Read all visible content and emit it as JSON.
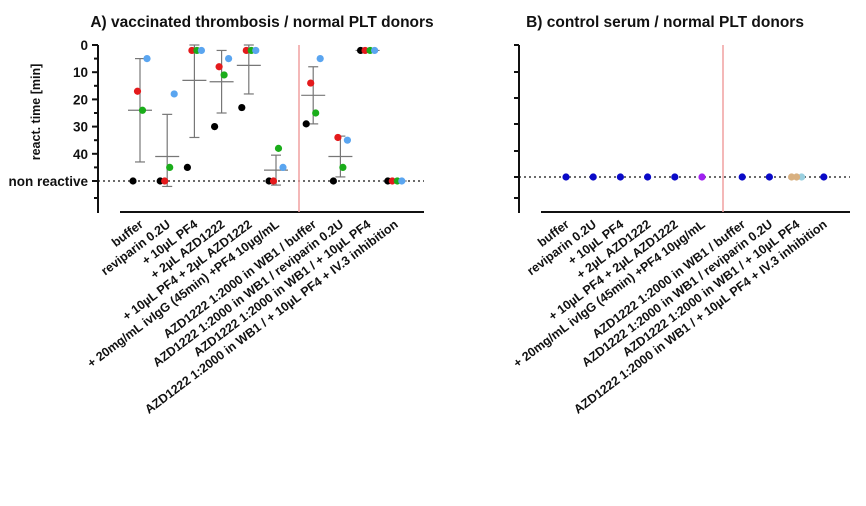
{
  "colors": {
    "donor1": "#000000",
    "donor2": "#e41a1c",
    "donor3": "#1aad1a",
    "donor4": "#5aa5f0",
    "control_marker": "#0a0ac8",
    "control_highlight": "#a020f0",
    "control_tan": "#d8b080",
    "control_light": "#9ad0e0",
    "separator": "#f0a0a0"
  },
  "chart_data": [
    {
      "type": "scatter",
      "title": "A) vaccinated thrombosis / normal PLT donors",
      "ylabel": "react. time [min]",
      "y_axis": "inverted",
      "ylim": [
        0,
        50
      ],
      "y_ticks": [
        "0",
        "10",
        "20",
        "30",
        "40",
        "non reactive"
      ],
      "reference_line": "non reactive (dotted)",
      "categories": [
        "buffer",
        "reviparin 0.2U",
        "+ 10µL PF4",
        "+ 2µL AZD1222",
        "+ 10µL PF4 + 2µL AZD1222",
        "+ 20mg/mL ivIgG (45min) +PF4 10µg/mL",
        "AZD1222 1:2000 in WB1 / buffer",
        "AZD1222 1:2000 in WB1 / reviparin 0.2U",
        "AZD1222 1:2000 in WB1 / + 10µL PF4",
        "AZD1222 1:2000 in WB1 / + 10µL PF4 + IV.3 inhibition"
      ],
      "series": [
        {
          "color": "#000000",
          "values": [
            50,
            50,
            45,
            30,
            23,
            50,
            29,
            50,
            2,
            50
          ]
        },
        {
          "color": "#e41a1c",
          "values": [
            17,
            50,
            2,
            8,
            2,
            50,
            14,
            34,
            2,
            50
          ]
        },
        {
          "color": "#1aad1a",
          "values": [
            24,
            45,
            2,
            11,
            2,
            38,
            25,
            45,
            2,
            50
          ]
        },
        {
          "color": "#5aa5f0",
          "values": [
            5,
            18,
            2,
            5,
            2,
            45,
            5,
            35,
            2,
            50
          ]
        }
      ],
      "mean": [
        24,
        41,
        13,
        13.5,
        7.5,
        46,
        18.5,
        41,
        2,
        50
      ],
      "sd": [
        19,
        15.5,
        21,
        11.5,
        10.5,
        5.5,
        10.5,
        7.5,
        0,
        0
      ]
    },
    {
      "type": "scatter",
      "title": "B) control serum / normal PLT donors",
      "ylabel": "",
      "y_axis": "inverted",
      "y_ticks": [],
      "reference_line": "non reactive (dotted)",
      "categories": [
        "buffer",
        "reviparin 0.2U",
        "+ 10µL PF4",
        "+ 2µL AZD1222",
        "+ 10µL PF4 + 2µL AZD1222",
        "+ 20mg/mL ivIgG (45min) +PF4 10µg/mL",
        "AZD1222 1:2000 in WB1 / buffer",
        "AZD1222 1:2000 in WB1 / reviparin 0.2U",
        "AZD1222 1:2000 in WB1 / + 10µL PF4",
        "AZD1222 1:2000 in WB1 / + 10µL PF4 + IV.3 inhibition"
      ],
      "note": "all values non reactive",
      "marker_colors": [
        "#0a0ac8",
        "#0a0ac8",
        "#0a0ac8",
        "#0a0ac8",
        "#0a0ac8",
        "#a020f0",
        "#0a0ac8",
        "#0a0ac8",
        "#d8b080",
        "#0a0ac8"
      ]
    }
  ]
}
